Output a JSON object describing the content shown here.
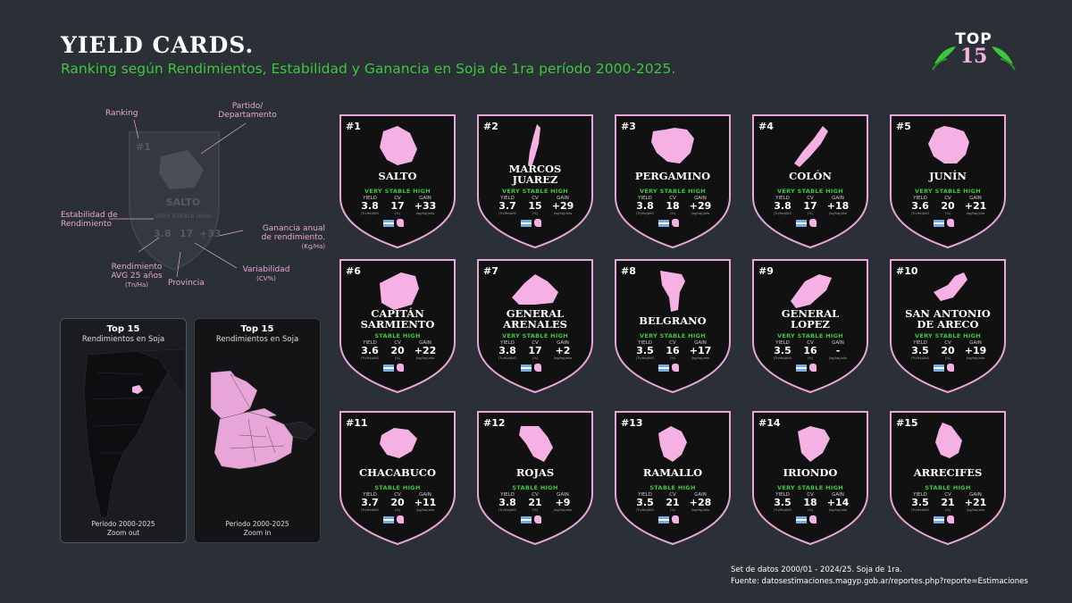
{
  "header": {
    "title": "YIELD CARDS.",
    "subtitle": "Ranking según Rendimientos, Estabilidad y Ganancia en Soja de 1ra período 2000-2025."
  },
  "logo": {
    "top": "TOP",
    "num": "15"
  },
  "legend": {
    "ranking": "Ranking",
    "partido": "Partido/",
    "departamento": "Departamento",
    "estabilidad1": "Estabilidad de",
    "estabilidad2": "Rendimiento",
    "ganancia1": "Ganancia anual",
    "ganancia2": "de rendimiento.",
    "ganancia_unit": "(Kg/Ha)",
    "rendimiento1": "Rendimiento",
    "rendimiento2": "AVG 25 años",
    "rendimiento_unit": "(Tn/Ha)",
    "variabilidad": "Variabilidad",
    "variabilidad_unit": "(CV%)",
    "provincia": "Provincia",
    "sample_rank": "#1",
    "sample_name": "SALTO",
    "sample_stab": "VERY STABLE HIGH",
    "sample_yield": "3.8",
    "sample_cv": "17",
    "sample_gain": "+33"
  },
  "maps": {
    "zoom_out": {
      "title": "Top 15",
      "subtitle": "Rendimientos en Soja",
      "period": "Periodo 2000-2025",
      "zoom": "Zoom out"
    },
    "zoom_in": {
      "title": "Top 15",
      "subtitle": "Rendimientos en Soja",
      "period": "Periodo 2000-2025",
      "zoom": "Zoom in"
    }
  },
  "card_labels": {
    "yield": "YIELD",
    "cv": "CV",
    "gain": "GAIN",
    "yield_unit": "(Tn/Ha)AVG",
    "cv_unit": "(%)",
    "gain_unit": "(kg/ha)/año"
  },
  "colors": {
    "accent_green": "#3ec73e",
    "pink": "#f5b1e3",
    "card_bg": "#111111",
    "page_bg": "#2b2f36"
  },
  "cards": [
    {
      "rank": "#1",
      "name1": "SALTO",
      "name2": "",
      "stab": "VERY STABLE HIGH",
      "yield": "3.8",
      "cv": "17",
      "gain": "+33"
    },
    {
      "rank": "#2",
      "name1": "MARCOS",
      "name2": "JUAREZ",
      "stab": "VERY STABLE HIGH",
      "yield": "3.7",
      "cv": "15",
      "gain": "+29"
    },
    {
      "rank": "#3",
      "name1": "PERGAMINO",
      "name2": "",
      "stab": "VERY STABLE HIGH",
      "yield": "3.8",
      "cv": "18",
      "gain": "+29"
    },
    {
      "rank": "#4",
      "name1": "COLÓN",
      "name2": "",
      "stab": "VERY STABLE HIGH",
      "yield": "3.8",
      "cv": "17",
      "gain": "+18"
    },
    {
      "rank": "#5",
      "name1": "JUNÍN",
      "name2": "",
      "stab": "VERY STABLE HIGH",
      "yield": "3.6",
      "cv": "20",
      "gain": "+21"
    },
    {
      "rank": "#6",
      "name1": "CAPITÁN",
      "name2": "SARMIENTO",
      "stab": "STABLE HIGH",
      "yield": "3.6",
      "cv": "20",
      "gain": "+22"
    },
    {
      "rank": "#7",
      "name1": "GENERAL",
      "name2": "ARENALES",
      "stab": "VERY STABLE HIGH",
      "yield": "3.8",
      "cv": "17",
      "gain": "+2"
    },
    {
      "rank": "#8",
      "name1": "BELGRANO",
      "name2": "",
      "stab": "VERY STABLE HIGH",
      "yield": "3.5",
      "cv": "16",
      "gain": "+17"
    },
    {
      "rank": "#9",
      "name1": "GENERAL",
      "name2": "LOPEZ",
      "stab": "VERY STABLE HIGH",
      "yield": "3.5",
      "cv": "16",
      "gain": "-"
    },
    {
      "rank": "#10",
      "name1": "SAN ANTONIO",
      "name2": "DE ARECO",
      "stab": "VERY STABLE HIGH",
      "yield": "3.5",
      "cv": "20",
      "gain": "+19"
    },
    {
      "rank": "#11",
      "name1": "CHACABUCO",
      "name2": "",
      "stab": "STABLE HIGH",
      "yield": "3.7",
      "cv": "20",
      "gain": "+11"
    },
    {
      "rank": "#12",
      "name1": "ROJAS",
      "name2": "",
      "stab": "STABLE HIGH",
      "yield": "3.8",
      "cv": "21",
      "gain": "+9"
    },
    {
      "rank": "#13",
      "name1": "RAMALLO",
      "name2": "",
      "stab": "STABLE HIGH",
      "yield": "3.5",
      "cv": "21",
      "gain": "+28"
    },
    {
      "rank": "#14",
      "name1": "IRIONDO",
      "name2": "",
      "stab": "VERY STABLE HIGH",
      "yield": "3.5",
      "cv": "18",
      "gain": "+14"
    },
    {
      "rank": "#15",
      "name1": "ARRECIFES",
      "name2": "",
      "stab": "STABLE HIGH",
      "yield": "3.5",
      "cv": "21",
      "gain": "+21"
    }
  ],
  "footer": {
    "line1": "Set de datos 2000/01 - 2024/25. Soja de 1ra.",
    "line2": "Fuente: datosestimaciones.magyp.gob.ar/reportes.php?reporte=Estimaciones"
  }
}
